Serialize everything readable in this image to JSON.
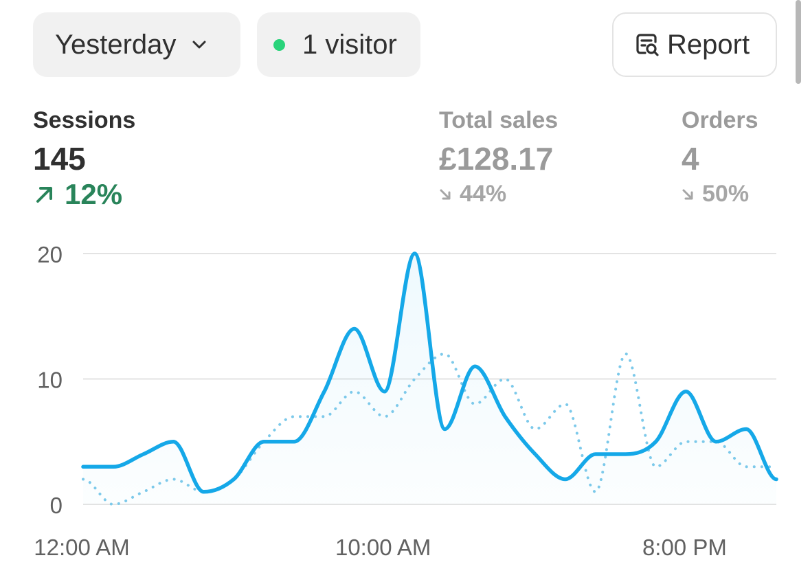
{
  "filters": {
    "period_label": "Yesterday",
    "visitors_label": "1 visitor",
    "report_label": "Report",
    "live_dot_color": "#29d37a"
  },
  "metrics": {
    "sessions": {
      "label": "Sessions",
      "value": "145",
      "change": "12%",
      "direction": "up"
    },
    "total_sales": {
      "label": "Total sales",
      "value": "£128.17",
      "change": "44%",
      "direction": "down"
    },
    "orders": {
      "label": "Orders",
      "value": "4",
      "change": "50%",
      "direction": "down"
    }
  },
  "chart_data": {
    "type": "line",
    "x": [
      0,
      1,
      2,
      3,
      4,
      5,
      6,
      7,
      8,
      9,
      10,
      11,
      12,
      13,
      14,
      15,
      16,
      17,
      18,
      19,
      20,
      21,
      22,
      23
    ],
    "x_tick_labels": [
      {
        "x": 0,
        "label": "12:00 AM"
      },
      {
        "x": 10,
        "label": "10:00 AM"
      },
      {
        "x": 20,
        "label": "8:00 PM"
      }
    ],
    "yticks": [
      0,
      10,
      20
    ],
    "ylim": [
      0,
      20
    ],
    "grid": true,
    "series": [
      {
        "style": "solid",
        "color": "#15a8e8",
        "values": [
          3,
          3,
          4,
          5,
          1,
          2,
          5,
          5,
          9,
          14,
          9,
          20,
          6,
          11,
          7,
          4,
          2,
          4,
          4,
          5,
          9,
          5,
          6,
          2
        ]
      },
      {
        "style": "dotted",
        "color": "#7cc9ea",
        "values": [
          2,
          0,
          1,
          2,
          1,
          2,
          5,
          7,
          7,
          9,
          7,
          10,
          12,
          8,
          10,
          6,
          8,
          1,
          12,
          3,
          5,
          5,
          3,
          3
        ]
      }
    ]
  }
}
